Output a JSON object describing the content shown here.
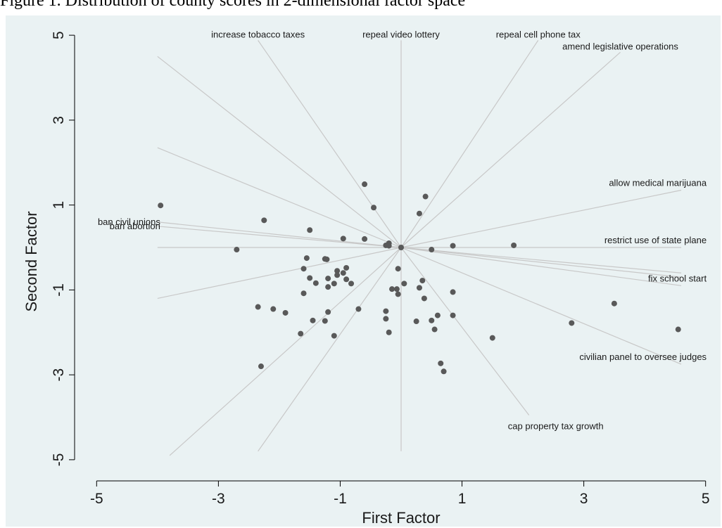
{
  "caption": "Figure 1. Distribution of county scores in 2-dimensional factor space",
  "chart_data": {
    "type": "scatter",
    "title": "",
    "xlabel": "First Factor",
    "ylabel": "Second Factor",
    "xlim": [
      -5.2,
      5.2
    ],
    "ylim": [
      -5.3,
      5.3
    ],
    "xticks": [
      -5,
      -3,
      -1,
      1,
      3,
      5
    ],
    "yticks": [
      -5,
      -3,
      -1,
      1,
      3,
      5
    ],
    "grid": false,
    "colors": {
      "background": "#eaf2f3",
      "points": "#595959",
      "rays": "#c8c8c8"
    },
    "points": [
      {
        "x": -3.95,
        "y": 0.99
      },
      {
        "x": -2.25,
        "y": 0.64
      },
      {
        "x": -2.7,
        "y": -0.05
      },
      {
        "x": -1.5,
        "y": 0.41
      },
      {
        "x": -0.95,
        "y": 0.21
      },
      {
        "x": -0.6,
        "y": 1.49
      },
      {
        "x": -0.45,
        "y": 0.94
      },
      {
        "x": -0.6,
        "y": 0.2
      },
      {
        "x": -0.2,
        "y": 0.1
      },
      {
        "x": -0.25,
        "y": 0.05
      },
      {
        "x": -0.2,
        "y": 0.04
      },
      {
        "x": 0.0,
        "y": 0.0
      },
      {
        "x": 0.3,
        "y": 0.8
      },
      {
        "x": 0.4,
        "y": 1.2
      },
      {
        "x": 0.5,
        "y": -0.05
      },
      {
        "x": 0.85,
        "y": 0.04
      },
      {
        "x": 1.85,
        "y": 0.05
      },
      {
        "x": -1.6,
        "y": -0.5
      },
      {
        "x": -1.55,
        "y": -0.25
      },
      {
        "x": -1.5,
        "y": -0.72
      },
      {
        "x": -1.6,
        "y": -1.08
      },
      {
        "x": -1.4,
        "y": -0.84
      },
      {
        "x": -1.25,
        "y": -0.27
      },
      {
        "x": -1.22,
        "y": -0.28
      },
      {
        "x": -1.2,
        "y": -0.73
      },
      {
        "x": -1.2,
        "y": -0.93
      },
      {
        "x": -1.1,
        "y": -0.85
      },
      {
        "x": -1.05,
        "y": -0.55
      },
      {
        "x": -1.05,
        "y": -0.65
      },
      {
        "x": -0.95,
        "y": -0.6
      },
      {
        "x": -0.9,
        "y": -0.75
      },
      {
        "x": -0.9,
        "y": -0.48
      },
      {
        "x": -0.82,
        "y": -0.85
      },
      {
        "x": -1.45,
        "y": -1.72
      },
      {
        "x": -1.25,
        "y": -1.73
      },
      {
        "x": -1.2,
        "y": -1.52
      },
      {
        "x": -1.1,
        "y": -2.08
      },
      {
        "x": -1.65,
        "y": -2.03
      },
      {
        "x": -2.35,
        "y": -1.4
      },
      {
        "x": -2.1,
        "y": -1.45
      },
      {
        "x": -1.9,
        "y": -1.54
      },
      {
        "x": -2.3,
        "y": -2.8
      },
      {
        "x": -0.7,
        "y": -1.45
      },
      {
        "x": -0.25,
        "y": -1.5
      },
      {
        "x": -0.25,
        "y": -1.68
      },
      {
        "x": -0.2,
        "y": -2.0
      },
      {
        "x": -0.15,
        "y": -0.98
      },
      {
        "x": -0.07,
        "y": -0.98
      },
      {
        "x": -0.05,
        "y": -0.5
      },
      {
        "x": -0.05,
        "y": -1.1
      },
      {
        "x": 0.05,
        "y": -0.85
      },
      {
        "x": 0.25,
        "y": -1.74
      },
      {
        "x": 0.3,
        "y": -0.95
      },
      {
        "x": 0.35,
        "y": -0.78
      },
      {
        "x": 0.38,
        "y": -1.2
      },
      {
        "x": 0.5,
        "y": -1.72
      },
      {
        "x": 0.55,
        "y": -1.93
      },
      {
        "x": 0.6,
        "y": -1.6
      },
      {
        "x": 0.65,
        "y": -2.73
      },
      {
        "x": 0.7,
        "y": -2.92
      },
      {
        "x": 0.85,
        "y": -1.05
      },
      {
        "x": 0.85,
        "y": -1.6
      },
      {
        "x": 1.5,
        "y": -2.13
      },
      {
        "x": 2.8,
        "y": -1.78
      },
      {
        "x": 3.5,
        "y": -1.32
      },
      {
        "x": 4.55,
        "y": -1.93
      }
    ],
    "vectors": [
      {
        "label": "increase tobacco taxes",
        "x": -2.35,
        "y": 4.88
      },
      {
        "label": "repeal video lottery",
        "x": 0.0,
        "y": 4.88
      },
      {
        "label": "repeal cell phone tax",
        "x": 2.25,
        "y": 4.88
      },
      {
        "label": "amend legislative operations",
        "x": 3.6,
        "y": 4.6
      },
      {
        "label": "allow medical marijuana",
        "x": 4.6,
        "y": 1.35
      },
      {
        "label": "restrict use of state plane",
        "x": 4.6,
        "y": 0.0
      },
      {
        "label": "fix school start",
        "x": 4.6,
        "y": -0.9
      },
      {
        "label": "civilian panel to oversee judges",
        "x": 4.6,
        "y": -2.75
      },
      {
        "label": "cap property tax growth",
        "x": 2.1,
        "y": -3.95
      },
      {
        "label": "ban civil unions",
        "x": -4.0,
        "y": 0.6
      },
      {
        "label": "ban abortion",
        "x": -4.0,
        "y": 0.5
      },
      {
        "label": "",
        "x": -4.0,
        "y": 4.5
      },
      {
        "label": "",
        "x": -4.0,
        "y": 2.35
      },
      {
        "label": "",
        "x": -4.0,
        "y": 0.0
      },
      {
        "label": "",
        "x": -4.0,
        "y": -1.2
      },
      {
        "label": "",
        "x": -3.8,
        "y": -4.9
      },
      {
        "label": "",
        "x": -2.35,
        "y": -4.8
      },
      {
        "label": "",
        "x": 0.0,
        "y": -4.8
      },
      {
        "label": "",
        "x": 4.6,
        "y": -0.6
      },
      {
        "label": "",
        "x": 4.6,
        "y": -0.7
      }
    ]
  }
}
